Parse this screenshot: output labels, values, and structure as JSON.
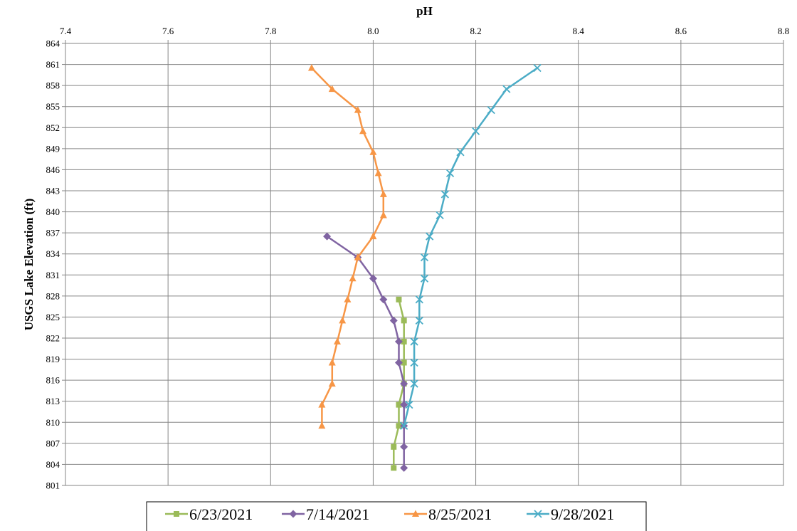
{
  "chart_data": {
    "type": "line",
    "title": "pH",
    "xlabel": "pH",
    "ylabel": "USGS Lake Elevation (ft)",
    "xlim": [
      7.4,
      8.8
    ],
    "ylim": [
      801,
      864
    ],
    "x_ticks": [
      "7.4",
      "7.6",
      "7.8",
      "8.0",
      "8.2",
      "8.4",
      "8.6",
      "8.8"
    ],
    "y_ticks": [
      "864",
      "861",
      "858",
      "855",
      "852",
      "849",
      "846",
      "843",
      "840",
      "837",
      "834",
      "831",
      "828",
      "825",
      "822",
      "819",
      "816",
      "813",
      "810",
      "807",
      "804",
      "801"
    ],
    "x_axis_position": "top",
    "grid": true,
    "legend_position": "bottom",
    "series": [
      {
        "name": "6/23/2021",
        "color": "#9BBB59",
        "marker": "square",
        "points": [
          [
            8.05,
            827.5
          ],
          [
            8.06,
            824.5
          ],
          [
            8.06,
            821.5
          ],
          [
            8.06,
            818.5
          ],
          [
            8.06,
            815.5
          ],
          [
            8.05,
            812.5
          ],
          [
            8.05,
            809.5
          ],
          [
            8.04,
            806.5
          ],
          [
            8.04,
            803.5
          ]
        ]
      },
      {
        "name": "7/14/2021",
        "color": "#8064A2",
        "marker": "diamond",
        "points": [
          [
            7.91,
            836.5
          ],
          [
            7.97,
            833.5
          ],
          [
            8.0,
            830.5
          ],
          [
            8.02,
            827.5
          ],
          [
            8.04,
            824.5
          ],
          [
            8.05,
            821.5
          ],
          [
            8.05,
            818.5
          ],
          [
            8.06,
            815.5
          ],
          [
            8.06,
            812.5
          ],
          [
            8.06,
            809.5
          ],
          [
            8.06,
            806.5
          ],
          [
            8.06,
            803.5
          ]
        ]
      },
      {
        "name": "8/25/2021",
        "color": "#F79646",
        "marker": "triangle",
        "points": [
          [
            7.88,
            860.5
          ],
          [
            7.92,
            857.5
          ],
          [
            7.97,
            854.5
          ],
          [
            7.98,
            851.5
          ],
          [
            8.0,
            848.5
          ],
          [
            8.01,
            845.5
          ],
          [
            8.02,
            842.5
          ],
          [
            8.02,
            839.5
          ],
          [
            8.0,
            836.5
          ],
          [
            7.97,
            833.5
          ],
          [
            7.96,
            830.5
          ],
          [
            7.95,
            827.5
          ],
          [
            7.94,
            824.5
          ],
          [
            7.93,
            821.5
          ],
          [
            7.92,
            818.5
          ],
          [
            7.92,
            815.5
          ],
          [
            7.9,
            812.5
          ],
          [
            7.9,
            809.5
          ]
        ]
      },
      {
        "name": "9/28/2021",
        "color": "#4BACC6",
        "marker": "x",
        "points": [
          [
            8.32,
            860.5
          ],
          [
            8.26,
            857.5
          ],
          [
            8.23,
            854.5
          ],
          [
            8.2,
            851.5
          ],
          [
            8.17,
            848.5
          ],
          [
            8.15,
            845.5
          ],
          [
            8.14,
            842.5
          ],
          [
            8.13,
            839.5
          ],
          [
            8.11,
            836.5
          ],
          [
            8.1,
            833.5
          ],
          [
            8.1,
            830.5
          ],
          [
            8.09,
            827.5
          ],
          [
            8.09,
            824.5
          ],
          [
            8.08,
            821.5
          ],
          [
            8.08,
            818.5
          ],
          [
            8.08,
            815.5
          ],
          [
            8.07,
            812.5
          ],
          [
            8.06,
            809.5
          ]
        ]
      }
    ]
  }
}
